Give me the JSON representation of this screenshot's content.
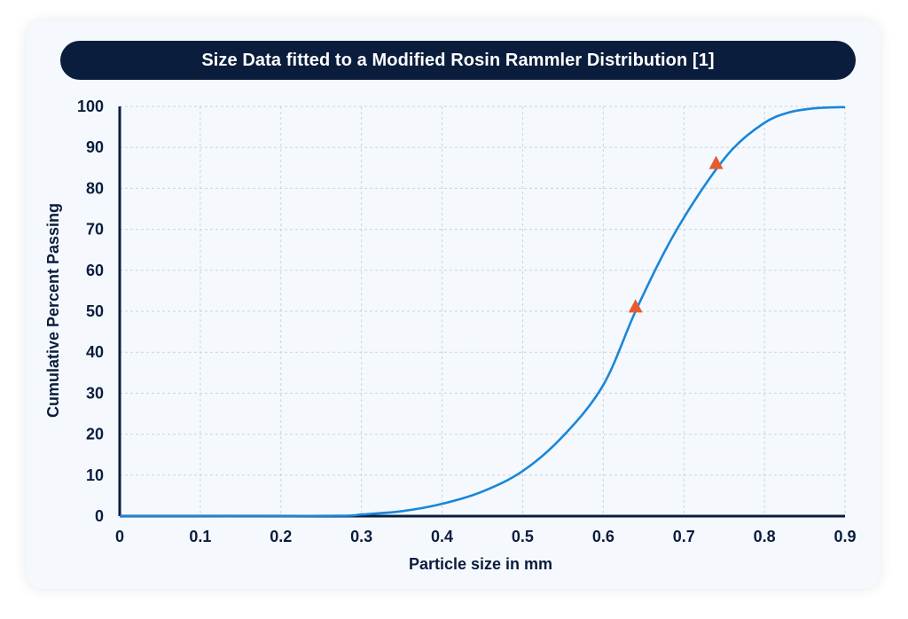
{
  "chart_data": {
    "type": "line",
    "title": "Size Data fitted to a Modified Rosin Rammler Distribution [1]",
    "xlabel": "Particle size in mm",
    "ylabel": "Cumulative Percent Passing",
    "xlim": [
      0,
      0.9
    ],
    "ylim": [
      0,
      100
    ],
    "x_ticks": [
      "0",
      "0.1",
      "0.2",
      "0.3",
      "0.4",
      "0.5",
      "0.6",
      "0.7",
      "0.8",
      "0.9"
    ],
    "y_ticks": [
      "0",
      "10",
      "20",
      "30",
      "40",
      "50",
      "60",
      "70",
      "80",
      "90",
      "100"
    ],
    "grid": true,
    "legend": "none",
    "series": [
      {
        "type": "line",
        "color": "#1a86d9",
        "x": [
          0,
          0.1,
          0.2,
          0.28,
          0.3,
          0.35,
          0.4,
          0.45,
          0.5,
          0.55,
          0.6,
          0.64,
          0.68,
          0.72,
          0.76,
          0.8,
          0.83,
          0.86,
          0.89,
          0.9
        ],
        "y": [
          0,
          0,
          0,
          0.1,
          0.4,
          1.2,
          3,
          6,
          11,
          19.5,
          32,
          50,
          66,
          79,
          89.5,
          96,
          98.5,
          99.5,
          99.8,
          99.8
        ]
      },
      {
        "type": "scatter",
        "marker": "triangle",
        "color": "#e65c2e",
        "x": [
          0.64,
          0.74
        ],
        "y": [
          51,
          86
        ]
      }
    ]
  }
}
